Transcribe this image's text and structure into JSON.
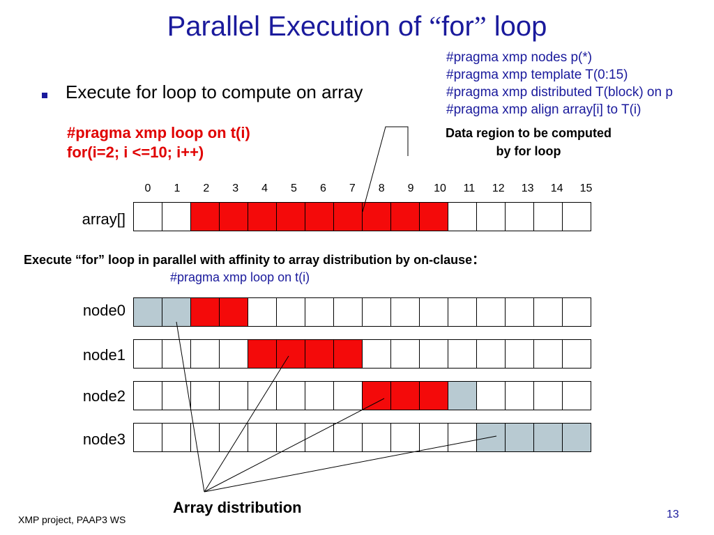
{
  "slide": {
    "title_pre": "Parallel Execution of ",
    "title_open_quote": "“",
    "title_keyword": "for",
    "title_close_quote": "”",
    "title_post": " loop",
    "pragma_lines": [
      "#pragma xmp nodes p(*)",
      "#pragma xmp template T(0:15)",
      "#pragma xmp distributed T(block) on p",
      "#pragma xmp align array[i] to T(i)"
    ],
    "bullet": "Execute for loop to compute on array",
    "red_code": [
      "#pragma xmp loop on t(i)",
      "for(i=2; i <=10; i++)"
    ],
    "callout": [
      "Data region to be computed",
      "by for loop"
    ],
    "indices": [
      "0",
      "1",
      "2",
      "3",
      "4",
      "5",
      "6",
      "7",
      "8",
      "9",
      "10",
      "11",
      "12",
      "13",
      "14",
      "15"
    ],
    "array_label": "array[]",
    "exec_text": "Execute “for” loop in parallel with affinity to array distribution by on-clause",
    "exec_colon": "：",
    "exec_code": "#pragma xmp loop on t(i)",
    "dist_label": "Array distribution",
    "footer": "XMP project, PAAP3  WS",
    "page_number": "13"
  },
  "grids": [
    {
      "name": "array",
      "label": "array[]",
      "cells": [
        "w",
        "w",
        "r",
        "r",
        "r",
        "r",
        "r",
        "r",
        "r",
        "r",
        "r",
        "w",
        "w",
        "w",
        "w",
        "w"
      ]
    },
    {
      "name": "node0",
      "label": "node0",
      "cells": [
        "g",
        "g",
        "r",
        "r",
        "w",
        "w",
        "w",
        "w",
        "w",
        "w",
        "w",
        "w",
        "w",
        "w",
        "w",
        "w"
      ]
    },
    {
      "name": "node1",
      "label": "node1",
      "cells": [
        "w",
        "w",
        "w",
        "w",
        "r",
        "r",
        "r",
        "r",
        "w",
        "w",
        "w",
        "w",
        "w",
        "w",
        "w",
        "w"
      ]
    },
    {
      "name": "node2",
      "label": "node2",
      "cells": [
        "w",
        "w",
        "w",
        "w",
        "w",
        "w",
        "w",
        "w",
        "r",
        "r",
        "r",
        "g",
        "w",
        "w",
        "w",
        "w"
      ]
    },
    {
      "name": "node3",
      "label": "node3",
      "cells": [
        "w",
        "w",
        "w",
        "w",
        "w",
        "w",
        "w",
        "w",
        "w",
        "w",
        "w",
        "w",
        "g",
        "g",
        "g",
        "g"
      ]
    }
  ],
  "colors": {
    "title": "#1a1a9c",
    "computed_cell": "#f40a0a",
    "distribution_cell": "#b8cad2",
    "red_code": "#e00000"
  }
}
